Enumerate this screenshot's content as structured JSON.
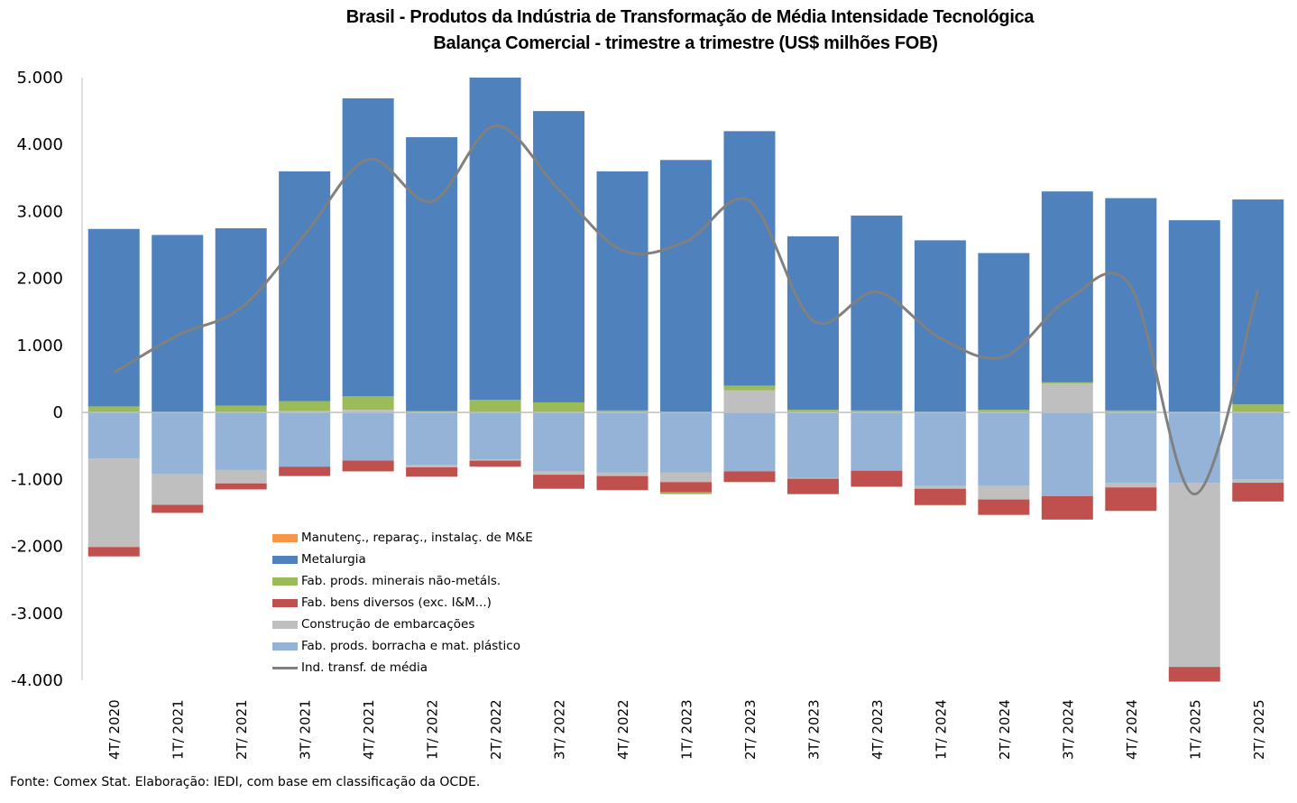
{
  "chart_data": {
    "type": "bar",
    "subtype": "stacked-bar-with-line",
    "title": "Brasil - Produtos da Indústria de Transformação de Média Intensidade Tecnológica",
    "subtitle": "Balança Comercial - trimestre a trimestre (US$ milhões FOB)",
    "xlabel": "",
    "ylabel": "",
    "ylim": [
      -4000,
      5000
    ],
    "yticks": [
      5000,
      4000,
      3000,
      2000,
      1000,
      0,
      -1000,
      -2000,
      -3000,
      -4000
    ],
    "ytick_labels": [
      "5.000",
      "4.000",
      "3.000",
      "2.000",
      "1.000",
      "0",
      "-1.000",
      "-2.000",
      "-3.000",
      "-4.000"
    ],
    "grid": false,
    "legend_position": "bottom-left",
    "categories": [
      "4T/ 2020",
      "1T/ 2021",
      "2T/ 2021",
      "3T/ 2021",
      "4T/ 2021",
      "1T/ 2022",
      "2T/ 2022",
      "3T/ 2022",
      "4T/ 2022",
      "1T/ 2023",
      "2T/ 2023",
      "3T/ 2023",
      "4T/ 2023",
      "1T/ 2024",
      "2T/ 2024",
      "3T/ 2024",
      "4T/ 2024",
      "1T/ 2025",
      "2T/ 2025"
    ],
    "series": [
      {
        "name": "Manutenç., reparaç., instalaç. de M&E",
        "color": "#F79646",
        "kind": "bar",
        "values": [
          0,
          0,
          0,
          0,
          0,
          0,
          0,
          0,
          0,
          0,
          0,
          0,
          0,
          0,
          0,
          0,
          0,
          0,
          0
        ]
      },
      {
        "name": "Metalurgia",
        "color": "#4F81BD",
        "kind": "bar",
        "values": [
          2650,
          2650,
          2650,
          3430,
          4450,
          4090,
          4810,
          4350,
          3570,
          3770,
          3800,
          2590,
          2910,
          2570,
          2340,
          2850,
          3170,
          2870,
          3060
        ]
      },
      {
        "name": "Fab. prods. minerais não-metáls.",
        "color": "#9BBB59",
        "kind": "bar",
        "values": [
          90,
          0,
          100,
          150,
          200,
          20,
          190,
          150,
          30,
          -30,
          70,
          40,
          30,
          -10,
          40,
          20,
          30,
          0,
          120
        ]
      },
      {
        "name": "Fab. bens diversos (exc. I&M...)",
        "color": "#C0504D",
        "kind": "bar",
        "values": [
          -140,
          -120,
          -90,
          -140,
          -160,
          -140,
          -90,
          -210,
          -210,
          -150,
          -160,
          -230,
          -240,
          -240,
          -230,
          -350,
          -350,
          -220,
          -280
        ]
      },
      {
        "name": "Construção de embarcações",
        "color": "#BFBFBF",
        "kind": "bar",
        "values": [
          -1320,
          -460,
          -200,
          20,
          40,
          -40,
          -20,
          -50,
          -50,
          -140,
          330,
          -10,
          0,
          -40,
          -200,
          430,
          -70,
          -2750,
          -50
        ]
      },
      {
        "name": "Fab. prods. borracha e mat. plástico",
        "color": "#95B3D7",
        "kind": "bar",
        "values": [
          -690,
          -920,
          -860,
          -810,
          -720,
          -780,
          -700,
          -880,
          -900,
          -900,
          -880,
          -980,
          -870,
          -1100,
          -1100,
          -1250,
          -1050,
          -1050,
          -1000
        ]
      },
      {
        "name": "Ind. transf. de média",
        "color": "#808080",
        "kind": "line",
        "values": [
          590,
          1150,
          1560,
          2650,
          3780,
          3150,
          4280,
          3330,
          2420,
          2550,
          3160,
          1370,
          1800,
          1110,
          830,
          1680,
          1880,
          -1220,
          1830
        ]
      }
    ]
  },
  "footer": {
    "source": "Fonte: Comex Stat. Elaboração: IEDI, com base em classificação da OCDE."
  }
}
